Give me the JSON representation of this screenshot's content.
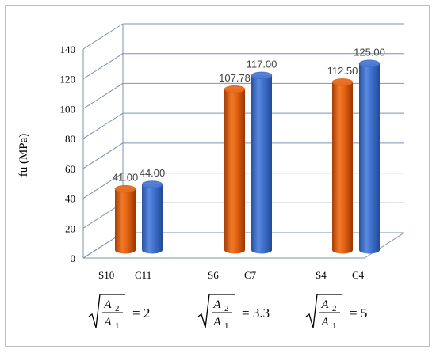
{
  "chart_data": {
    "type": "bar",
    "style": "3d-cylinder",
    "ylabel": "fu (MPa)",
    "ylim": [
      0,
      140
    ],
    "yticks": [
      "0",
      "20",
      "40",
      "60",
      "80",
      "100",
      "120",
      "140"
    ],
    "grid": true,
    "groups": [
      {
        "ratio_value": "2",
        "bars": [
          {
            "category": "S10",
            "value": 41.0,
            "label": "41.00",
            "color": "#e3620f"
          },
          {
            "category": "C11",
            "value": 44.0,
            "label": "44.00",
            "color": "#3f70cf"
          }
        ]
      },
      {
        "ratio_value": "3.3",
        "bars": [
          {
            "category": "S6",
            "value": 107.78,
            "label": "107.78",
            "color": "#e3620f"
          },
          {
            "category": "C7",
            "value": 117.0,
            "label": "117.00",
            "color": "#3f70cf"
          }
        ]
      },
      {
        "ratio_value": "5",
        "bars": [
          {
            "category": "S4",
            "value": 112.5,
            "label": "112.50",
            "color": "#e3620f"
          },
          {
            "category": "C4",
            "value": 125.0,
            "label": "125.00",
            "color": "#3f70cf"
          }
        ]
      }
    ],
    "ratio_formula": {
      "numerator": "A",
      "numerator_sub": "2",
      "denominator": "A",
      "denominator_sub": "1",
      "equals": "="
    }
  }
}
